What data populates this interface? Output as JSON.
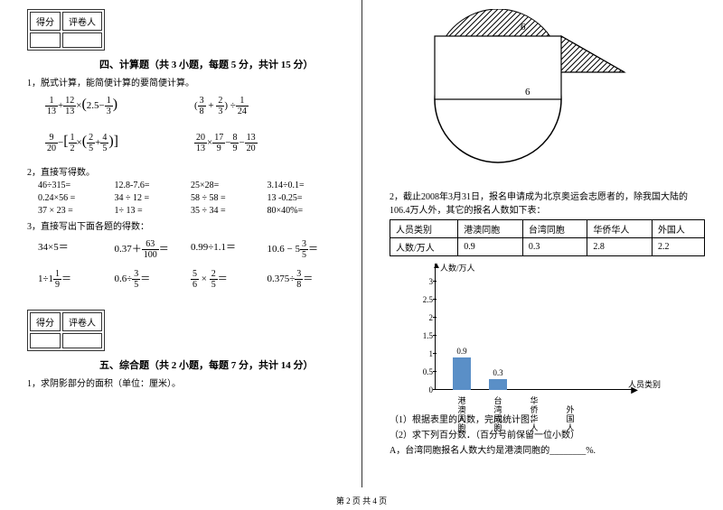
{
  "scorebox": {
    "c1": "得分",
    "c2": "评卷人"
  },
  "sec4": {
    "title": "四、计算题（共 3 小题，每题 5 分，共计 15 分）",
    "q1": "1，脱式计算，能简便计算的要简便计算。",
    "e1a_1": "1",
    "e1a_2": "13",
    "e1a_3": "12",
    "e1a_4": "13",
    "e1a_5": "2.5",
    "e1a_6": "1",
    "e1a_7": "3",
    "e1b_1": "3",
    "e1b_2": "8",
    "e1b_3": "2",
    "e1b_4": "3",
    "e1b_5": "1",
    "e1b_6": "24",
    "e2a_1": "9",
    "e2a_2": "20",
    "e2a_3": "1",
    "e2a_4": "2",
    "e2a_5": "2",
    "e2a_6": "5",
    "e2a_7": "4",
    "e2a_8": "5",
    "e2b_1": "20",
    "e2b_2": "13",
    "e2b_3": "17",
    "e2b_4": "9",
    "e2b_5": "8",
    "e2b_6": "9",
    "e2b_7": "13",
    "e2b_8": "20",
    "q2": "2，直接写得数。",
    "r1a": "46÷315=",
    "r1b": "12.8-7.6=",
    "r1c": "25×28=",
    "r1d": "3.14÷0.1=",
    "r2a": "0.24×56 =",
    "r2b": "34 ÷ 12 =",
    "r2c": "58 ÷ 58 =",
    "r2d": "13 -0.25=",
    "r3a": "37 × 23 =",
    "r3b": "1÷ 13 =",
    "r3c": "35 ÷ 34 =",
    "r3d": "80×40%=",
    "q3": "3，直接写出下面各题的得数：",
    "s1a": "34×5＝",
    "s1b_p": "0.37＋",
    "s1b_n": "63",
    "s1b_d": "100",
    "s1b_s": "＝",
    "s1c": "0.99÷1.1＝",
    "s1d_p": "10.6 − 5",
    "s1d_n": "3",
    "s1d_d": "5",
    "s1d_s": "＝",
    "s2a_p": "1÷1",
    "s2a_n": "1",
    "s2a_d": "9",
    "s2a_s": "＝",
    "s2b_p": "0.6÷",
    "s2b_n": "3",
    "s2b_d": "5",
    "s2b_s": "＝",
    "s2c_n1": "5",
    "s2c_d1": "6",
    "s2c_n2": "2",
    "s2c_d2": "5",
    "s2c_s": "＝",
    "s2d_p": "0.375÷",
    "s2d_n": "3",
    "s2d_d": "8",
    "s2d_s": "＝"
  },
  "sec5": {
    "title": "五、综合题（共 2 小题，每题 7 分，共计 14 分）",
    "q1": "1，求阴影部分的面积（单位：厘米）。"
  },
  "right": {
    "lbl6a": "6",
    "lbl6b": "6",
    "q2": "2，截止2008年3月31日，报名申请成为北京奥运会志愿者的，除我国大陆的106.4万人外，其它的报名人数如下表：",
    "th1": "人员类别",
    "th2": "港澳同胞",
    "th3": "台湾同胞",
    "th4": "华侨华人",
    "th5": "外国人",
    "td1": "人数/万人",
    "td2": "0.9",
    "td3": "0.3",
    "td4": "2.8",
    "td5": "2.2",
    "ylabel": "人数/万人",
    "yticks": [
      "3",
      "2.5",
      "2",
      "1.5",
      "1",
      "0.5",
      "0"
    ],
    "bars": [
      {
        "label": "港澳同胞",
        "value": 0.9,
        "valtxt": "0.9",
        "color": "#5a8fc7",
        "x": 50
      },
      {
        "label": "台湾同胞",
        "value": 0.3,
        "valtxt": "0.3",
        "color": "#5a8fc7",
        "x": 90
      },
      {
        "label": "华侨华人",
        "value": null,
        "valtxt": "",
        "color": "#5a8fc7",
        "x": 130
      },
      {
        "label": "外国人",
        "value": null,
        "valtxt": "",
        "color": "#5a8fc7",
        "x": 170
      }
    ],
    "xlabel": "人员类别",
    "sub1": "（1）根据表里的人数，完成统计图．",
    "sub2": "（2）求下列百分数．（百分号前保留一位小数）",
    "subA": "A，台湾同胞报名人数大约是港澳同胞的________%."
  },
  "footer": "第 2 页  共 4 页"
}
